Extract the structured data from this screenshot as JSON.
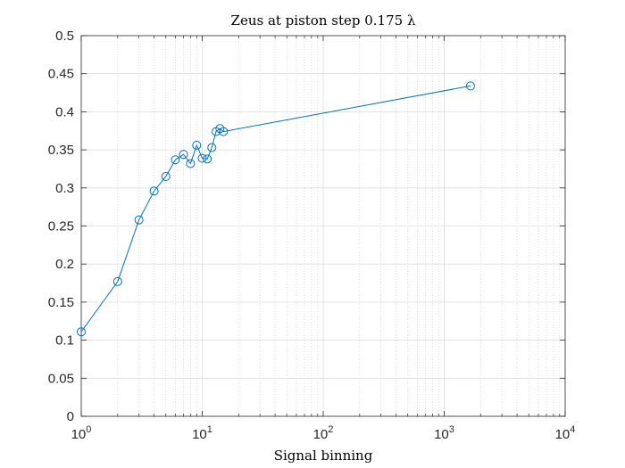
{
  "chart_data": {
    "type": "line",
    "title": "Zeus at piston step 0.175 λ",
    "xlabel": "Signal binning",
    "ylabel": "",
    "xscale": "log",
    "xlim": [
      1,
      10000
    ],
    "ylim": [
      0,
      0.5
    ],
    "grid": true,
    "minor_grid": true,
    "line_color": "#0072BD",
    "marker": "circle",
    "x_ticks": [
      {
        "value": 1,
        "base": "10",
        "exp": "0"
      },
      {
        "value": 10,
        "base": "10",
        "exp": "1"
      },
      {
        "value": 100,
        "base": "10",
        "exp": "2"
      },
      {
        "value": 1000,
        "base": "10",
        "exp": "3"
      },
      {
        "value": 10000,
        "base": "10",
        "exp": "4"
      }
    ],
    "y_ticks": [
      {
        "value": 0,
        "label": "0"
      },
      {
        "value": 0.05,
        "label": "0.05"
      },
      {
        "value": 0.1,
        "label": "0.1"
      },
      {
        "value": 0.15,
        "label": "0.15"
      },
      {
        "value": 0.2,
        "label": "0.2"
      },
      {
        "value": 0.25,
        "label": "0.25"
      },
      {
        "value": 0.3,
        "label": "0.3"
      },
      {
        "value": 0.35,
        "label": "0.35"
      },
      {
        "value": 0.4,
        "label": "0.4"
      },
      {
        "value": 0.45,
        "label": "0.45"
      },
      {
        "value": 0.5,
        "label": "0.5"
      }
    ],
    "series": [
      {
        "x": [
          1,
          2,
          3,
          4,
          5,
          6,
          7,
          8,
          9,
          10,
          11,
          12,
          13,
          14,
          15,
          1650
        ],
        "y": [
          0.111,
          0.177,
          0.258,
          0.296,
          0.315,
          0.337,
          0.344,
          0.332,
          0.356,
          0.339,
          0.338,
          0.353,
          0.374,
          0.378,
          0.374,
          0.434
        ]
      }
    ]
  }
}
